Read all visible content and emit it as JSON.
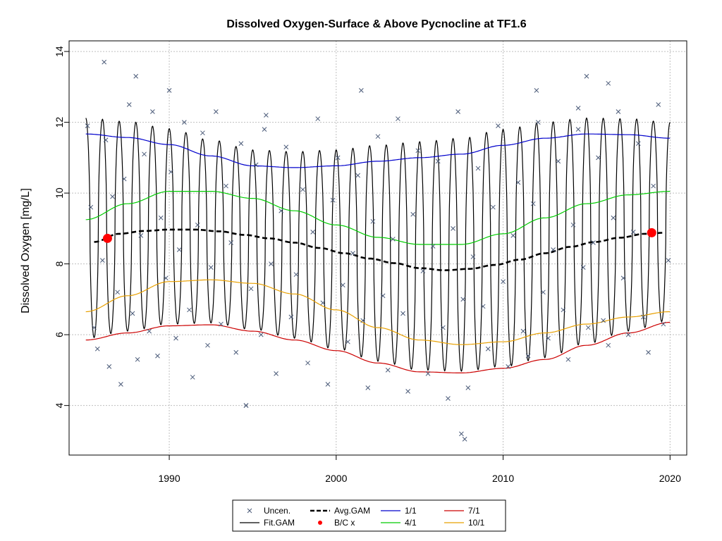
{
  "chart_data": {
    "type": "line",
    "title": "Dissolved Oxygen-Surface & Above Pycnocline at TF1.6",
    "xlabel": "",
    "ylabel": "Dissolved Oxygen [mg/L]",
    "xlim": [
      1984,
      2021
    ],
    "ylim": [
      2.6,
      14.3
    ],
    "x_ticks": [
      1990,
      2000,
      2010,
      2020
    ],
    "y_ticks": [
      4,
      6,
      8,
      10,
      12,
      14
    ],
    "grid": true,
    "legend_position": "bottom-center",
    "legend": [
      {
        "label": "Uncen.",
        "kind": "x-marker",
        "color": "#4a5a78"
      },
      {
        "label": "Fit.GAM",
        "kind": "line",
        "color": "#000000"
      },
      {
        "label": "Avg.GAM",
        "kind": "dashed-line",
        "color": "#000000"
      },
      {
        "label": "B/C x",
        "kind": "dot",
        "color": "#ff0000"
      },
      {
        "label": "1/1",
        "kind": "line",
        "color": "#0000cc"
      },
      {
        "label": "4/1",
        "kind": "line",
        "color": "#00cc00"
      },
      {
        "label": "7/1",
        "kind": "line",
        "color": "#cc0000"
      },
      {
        "label": "10/1",
        "kind": "line",
        "color": "#e8a000"
      }
    ],
    "series": [
      {
        "name": "1/1",
        "color": "#0000cc",
        "x": [
          1985,
          1987.5,
          1990,
          1992.5,
          1995,
          1997.5,
          2000,
          2002.5,
          2005,
          2007.5,
          2010,
          2012.5,
          2015,
          2017.5,
          2020
        ],
        "y": [
          11.67,
          11.57,
          11.37,
          11.05,
          10.77,
          10.72,
          10.77,
          10.9,
          11.0,
          11.1,
          11.35,
          11.55,
          11.67,
          11.65,
          11.55
        ]
      },
      {
        "name": "4/1",
        "color": "#00cc00",
        "x": [
          1985,
          1987.5,
          1990,
          1992.5,
          1995,
          1997.5,
          2000,
          2002.5,
          2005,
          2007.5,
          2010,
          2012.5,
          2015,
          2017.5,
          2020
        ],
        "y": [
          9.25,
          9.7,
          10.05,
          10.05,
          9.85,
          9.5,
          9.1,
          8.75,
          8.55,
          8.55,
          8.85,
          9.3,
          9.7,
          9.95,
          10.05
        ]
      },
      {
        "name": "7/1",
        "color": "#cc0000",
        "x": [
          1985,
          1987.5,
          1990,
          1992.5,
          1995,
          1997.5,
          2000,
          2002.5,
          2005,
          2007.5,
          2010,
          2012.5,
          2015,
          2017.5,
          2020
        ],
        "y": [
          5.85,
          6.05,
          6.25,
          6.28,
          6.1,
          5.85,
          5.55,
          5.2,
          4.95,
          4.92,
          5.05,
          5.3,
          5.7,
          6.05,
          6.35
        ]
      },
      {
        "name": "10/1",
        "color": "#e8a000",
        "x": [
          1985,
          1987.5,
          1990,
          1992.5,
          1995,
          1997.5,
          2000,
          2002.5,
          2005,
          2007.5,
          2010,
          2012.5,
          2015,
          2017.5,
          2020
        ],
        "y": [
          6.65,
          7.1,
          7.5,
          7.55,
          7.45,
          7.15,
          6.7,
          6.2,
          5.85,
          5.72,
          5.8,
          6.05,
          6.3,
          6.5,
          6.65
        ]
      },
      {
        "name": "Avg.GAM",
        "color": "#000000",
        "dashed": true,
        "x": [
          1985.5,
          1987,
          1988.5,
          1990,
          1991.5,
          1993,
          1994.5,
          1996,
          1997.5,
          1999,
          2000.5,
          2002,
          2003.5,
          2005,
          2006.5,
          2008,
          2009.5,
          2011,
          2012.5,
          2014,
          2015.5,
          2017,
          2018.5,
          2019.7
        ],
        "y": [
          8.62,
          8.85,
          8.93,
          8.97,
          8.97,
          8.92,
          8.82,
          8.72,
          8.6,
          8.45,
          8.3,
          8.15,
          8.02,
          7.88,
          7.82,
          7.86,
          7.97,
          8.12,
          8.3,
          8.48,
          8.62,
          8.74,
          8.85,
          8.88
        ]
      },
      {
        "name": "Fit.GAM",
        "color": "#000000",
        "x_start": 1985,
        "x_end": 2020,
        "seasonal": true,
        "peak_series": "1/1",
        "trough_series": "7/1"
      },
      {
        "name": "B/C x",
        "color": "#ff0000",
        "kind": "dot",
        "x": [
          1986.3,
          2018.9
        ],
        "y": [
          8.72,
          8.88
        ]
      },
      {
        "name": "Uncen.",
        "color": "#4a5a78",
        "kind": "x-marker",
        "x": [
          1985.1,
          1985.3,
          1985.5,
          1985.7,
          1986,
          1986.2,
          1986.4,
          1986.6,
          1986.9,
          1987.1,
          1987.3,
          1987.6,
          1987.8,
          1988.1,
          1988.3,
          1988.5,
          1988.8,
          1989,
          1989.3,
          1989.5,
          1989.8,
          1990.1,
          1990.4,
          1990.6,
          1990.9,
          1991.2,
          1991.4,
          1991.7,
          1992,
          1992.3,
          1992.5,
          1992.8,
          1993.1,
          1993.4,
          1993.7,
          1994,
          1994.3,
          1994.6,
          1994.9,
          1995.2,
          1995.5,
          1995.8,
          1996.1,
          1996.4,
          1996.7,
          1997,
          1997.3,
          1997.6,
          1998,
          1998.3,
          1998.6,
          1998.9,
          1999.2,
          1999.5,
          1999.8,
          2000.1,
          2000.4,
          2000.7,
          2001,
          2001.3,
          2001.6,
          2001.9,
          2002.2,
          2002.5,
          2002.8,
          2003.1,
          2003.4,
          2003.7,
          2004,
          2004.3,
          2004.6,
          2004.9,
          2005.2,
          2005.5,
          2005.8,
          2006.1,
          2006.4,
          2006.7,
          2007,
          2007.3,
          2007.6,
          2007.9,
          2008.2,
          2008.5,
          2008.8,
          2009.1,
          2009.4,
          2009.7,
          2010,
          2010.3,
          2010.6,
          2010.9,
          2011.2,
          2011.5,
          2011.8,
          2012.1,
          2012.4,
          2012.7,
          2013,
          2013.3,
          2013.6,
          2013.9,
          2014.2,
          2014.5,
          2014.8,
          2015.1,
          2015.4,
          2015.7,
          2016,
          2016.3,
          2016.6,
          2016.9,
          2017.2,
          2017.5,
          2017.8,
          2018.1,
          2018.4,
          2018.7,
          2019,
          2019.3,
          2019.6,
          2019.9,
          1986.1,
          1988,
          1994.6,
          1995.7,
          2007.5,
          2007.7,
          2001.5,
          1990,
          2015,
          2016.3,
          2012,
          2014.5
        ],
        "y": [
          11.9,
          9.6,
          6.2,
          5.6,
          8.1,
          11.5,
          5.1,
          9.9,
          7.2,
          4.6,
          10.4,
          12.5,
          6.6,
          5.3,
          8.8,
          11.1,
          6.1,
          12.3,
          5.4,
          9.3,
          7.6,
          10.6,
          5.9,
          8.4,
          12.0,
          6.7,
          4.8,
          9.1,
          11.7,
          5.7,
          7.9,
          12.3,
          6.3,
          10.2,
          8.6,
          5.5,
          11.4,
          4.0,
          7.3,
          10.8,
          6.0,
          12.2,
          8.0,
          4.9,
          9.5,
          11.3,
          6.5,
          7.7,
          10.1,
          5.2,
          8.9,
          12.1,
          6.9,
          4.6,
          9.8,
          11.0,
          7.4,
          5.8,
          8.3,
          10.5,
          6.4,
          4.5,
          9.2,
          11.6,
          7.1,
          5.0,
          8.7,
          12.1,
          6.6,
          4.4,
          9.4,
          11.2,
          7.8,
          4.9,
          8.5,
          10.9,
          6.2,
          4.2,
          9.0,
          12.3,
          7.0,
          4.5,
          8.2,
          10.7,
          6.8,
          5.6,
          9.6,
          11.9,
          7.5,
          5.1,
          8.8,
          10.3,
          6.1,
          5.4,
          9.7,
          12.0,
          7.2,
          5.9,
          8.4,
          10.9,
          6.7,
          5.3,
          9.1,
          11.8,
          7.9,
          6.2,
          8.6,
          11.0,
          6.4,
          5.7,
          9.3,
          12.3,
          7.6,
          6.0,
          8.9,
          11.4,
          6.5,
          5.5,
          10.2,
          12.5,
          6.3,
          8.1,
          13.7,
          13.3,
          4.0,
          11.8,
          3.2,
          3.05,
          12.9,
          12.9,
          13.3,
          13.1,
          12.9,
          12.4
        ]
      }
    ]
  }
}
